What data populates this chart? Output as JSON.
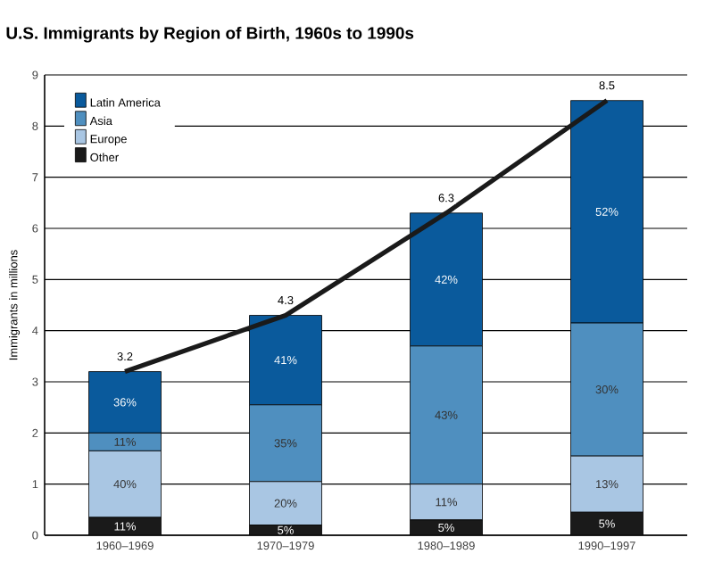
{
  "chart_data": {
    "type": "bar",
    "stacked": true,
    "title": "U.S. Immigrants by Region of Birth, 1960s to 1990s",
    "ylabel": "Immigrants in millions",
    "categories": [
      "1960–1969",
      "1970–1979",
      "1980–1989",
      "1990–1997"
    ],
    "series": [
      {
        "name": "Other",
        "color": "#1a1a1a",
        "values": [
          0.35,
          0.2,
          0.3,
          0.45
        ]
      },
      {
        "name": "Europe",
        "color": "#a9c6e3",
        "values": [
          1.3,
          0.85,
          0.7,
          1.1
        ]
      },
      {
        "name": "Asia",
        "color": "#4f8fbf",
        "values": [
          0.35,
          1.5,
          2.7,
          2.6
        ]
      },
      {
        "name": "Latin America",
        "color": "#0a5a9c",
        "values": [
          1.2,
          1.75,
          2.6,
          4.35
        ]
      },
      {
        "type": "line",
        "color": "#1a1a1a",
        "values": [
          3.2,
          4.3,
          6.3,
          8.5
        ]
      }
    ],
    "annotations": [
      "11%",
      "5%",
      "5%",
      "5%",
      "40%",
      "20%",
      "11%",
      "13%",
      "11%",
      "35%",
      "43%",
      "30%",
      "36%",
      "41%",
      "42%",
      "52%"
    ],
    "totals": [
      "3.2",
      "4.3",
      "6.3",
      "8.5"
    ],
    "ylim": [
      0,
      9
    ],
    "yticks": [
      0,
      1,
      2,
      3,
      4,
      5,
      6,
      7,
      8,
      9
    ],
    "grid": "y",
    "legend": "top left"
  }
}
